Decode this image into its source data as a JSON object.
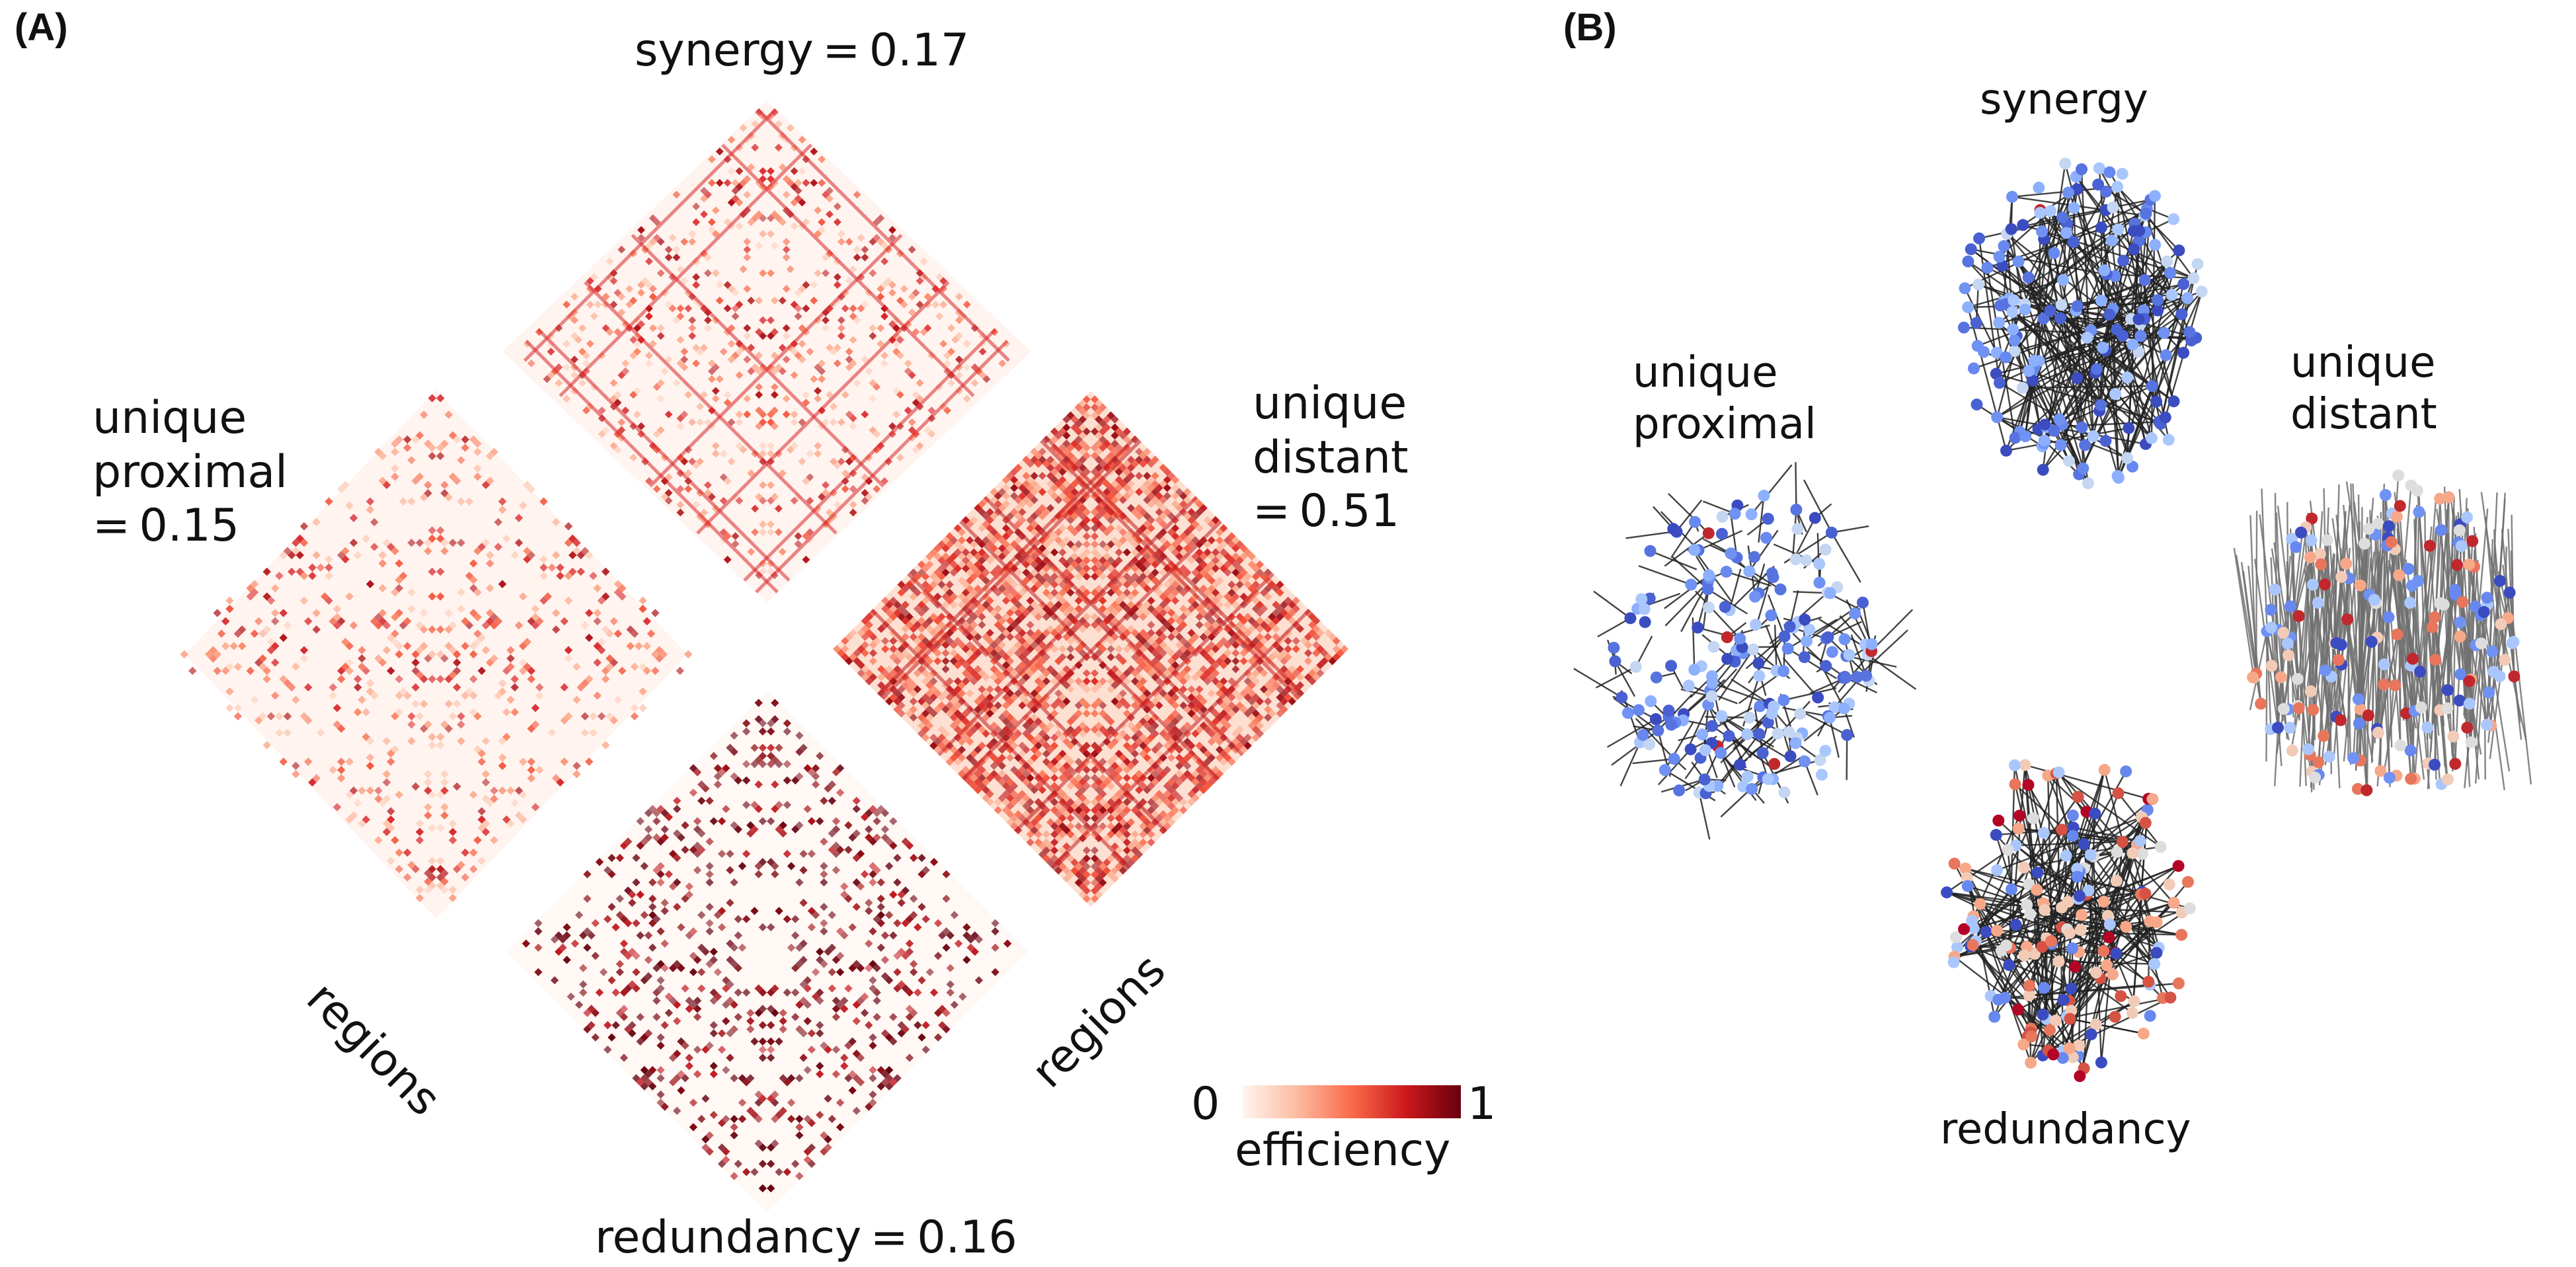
{
  "panel_a": {
    "letter": "(A)",
    "matrices": [
      {
        "key": "synergy",
        "label": "synergy = 0.17",
        "intensity": "low",
        "density": 0.18
      },
      {
        "key": "unique_proximal",
        "label": "unique\nproximal\n= 0.15",
        "intensity": "low",
        "density": 0.16
      },
      {
        "key": "unique_distant",
        "label": "unique\ndistant\n= 0.51",
        "intensity": "high",
        "density": 0.62
      },
      {
        "key": "redundancy",
        "label": "redundancy = 0.16",
        "intensity": "dark",
        "density": 0.17
      }
    ],
    "axis_label_left": "regions",
    "axis_label_right": "regions",
    "colorbar": {
      "min_label": "0",
      "max_label": "1",
      "title": "efficiency",
      "colors": [
        "#fff5f0",
        "#fcbba1",
        "#fb6a4a",
        "#cb181d",
        "#67000d"
      ]
    }
  },
  "panel_b": {
    "letter": "(B)",
    "networks": [
      {
        "key": "synergy",
        "label": "synergy",
        "palette": "blue"
      },
      {
        "key": "unique_proximal",
        "label": "unique\nproximal",
        "palette": "blue"
      },
      {
        "key": "unique_distant",
        "label": "unique\ndistant",
        "palette": "mixed"
      },
      {
        "key": "redundancy",
        "label": "redundancy",
        "palette": "warm"
      }
    ]
  }
}
